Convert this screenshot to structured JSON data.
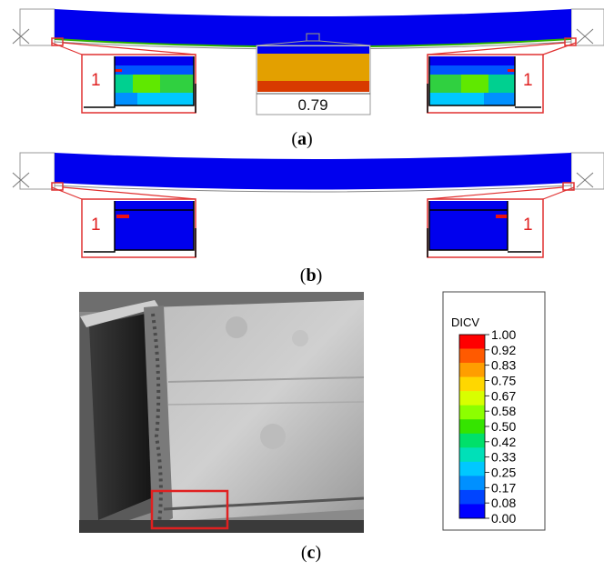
{
  "panels": {
    "a": {
      "label_open": "(",
      "label_letter": "a",
      "label_close": ")",
      "zoom_left_number": "1",
      "zoom_right_number": "1",
      "mid_value": "0.79"
    },
    "b": {
      "label_open": "(",
      "label_letter": "b",
      "label_close": ")",
      "zoom_left_number": "1",
      "zoom_right_number": "1"
    },
    "c": {
      "label_open": "(",
      "label_letter": "c",
      "label_close": ")"
    }
  },
  "legend": {
    "title": "DICV",
    "ticks": [
      "1.00",
      "0.92",
      "0.83",
      "0.75",
      "0.67",
      "0.58",
      "0.50",
      "0.42",
      "0.33",
      "0.25",
      "0.17",
      "0.08",
      "0.00"
    ],
    "colors": [
      "#ff0000",
      "#ff5a00",
      "#ff9e00",
      "#ffd700",
      "#d8ff00",
      "#8cff00",
      "#35e400",
      "#00e06a",
      "#00e0b8",
      "#00c8ff",
      "#0090ff",
      "#0044ff",
      "#0000ff"
    ]
  },
  "colors": {
    "beam": "#0000ee",
    "zoom_border": "#e03030",
    "mid_orange": "#e3a000",
    "mid_red": "#d83a00"
  }
}
